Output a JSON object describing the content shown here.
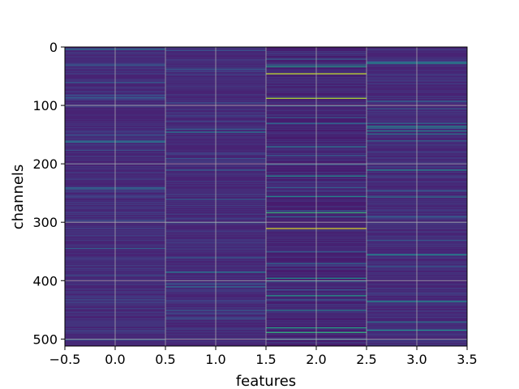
{
  "chart_data": {
    "type": "heatmap",
    "title": "",
    "xlabel": "features",
    "ylabel": "channels",
    "xlim": [
      -0.5,
      3.5
    ],
    "ylim": [
      512,
      0
    ],
    "y_inverted": true,
    "grid": true,
    "colormap": "viridis",
    "x_ticks": [
      -0.5,
      0.0,
      0.5,
      1.0,
      1.5,
      2.0,
      2.5,
      3.0,
      3.5
    ],
    "x_tick_labels": [
      "−0.5",
      "0.0",
      "0.5",
      "1.0",
      "1.5",
      "2.0",
      "2.5",
      "3.0",
      "3.5"
    ],
    "y_ticks": [
      0,
      100,
      200,
      300,
      400,
      500
    ],
    "y_tick_labels": [
      "0",
      "100",
      "200",
      "300",
      "400",
      "500"
    ],
    "features": [
      0,
      1,
      2,
      3
    ],
    "n_channels": 512,
    "value_range": [
      0,
      1
    ],
    "base_levels": [
      0.1,
      0.1,
      0.08,
      0.1
    ],
    "highlights": [
      {
        "feature": 0,
        "channels": [
          3,
          30,
          60,
          82,
          86,
          150,
          160,
          162,
          176,
          240,
          242,
          296,
          344,
          390,
          432,
          500
        ],
        "values": [
          0.4,
          0.3,
          0.3,
          0.25,
          0.3,
          0.25,
          0.35,
          0.4,
          0.25,
          0.3,
          0.35,
          0.25,
          0.3,
          0.25,
          0.25,
          0.3
        ]
      },
      {
        "feature": 1,
        "channels": [
          5,
          37,
          95,
          140,
          145,
          190,
          210,
          260,
          300,
          360,
          385,
          405,
          410,
          450,
          465
        ],
        "values": [
          0.25,
          0.3,
          0.25,
          0.3,
          0.4,
          0.25,
          0.3,
          0.3,
          0.25,
          0.3,
          0.4,
          0.3,
          0.35,
          0.3,
          0.25
        ]
      },
      {
        "feature": 2,
        "channels": [
          20,
          30,
          33,
          45,
          87,
          100,
          120,
          130,
          170,
          185,
          200,
          220,
          240,
          255,
          280,
          283,
          290,
          310,
          350,
          370,
          395,
          400,
          415,
          425,
          432,
          450,
          480,
          488,
          500
        ],
        "values": [
          0.3,
          0.4,
          0.55,
          0.92,
          0.88,
          0.3,
          0.3,
          0.35,
          0.4,
          0.3,
          0.3,
          0.5,
          0.3,
          0.45,
          0.3,
          0.65,
          0.35,
          0.95,
          0.3,
          0.35,
          0.5,
          0.4,
          0.3,
          0.55,
          0.3,
          0.45,
          0.6,
          0.65,
          0.3
        ]
      },
      {
        "feature": 3,
        "channels": [
          25,
          27,
          92,
          105,
          130,
          135,
          138,
          143,
          148,
          160,
          210,
          245,
          256,
          290,
          330,
          355,
          375,
          435,
          470,
          484
        ],
        "values": [
          0.35,
          0.5,
          0.35,
          0.3,
          0.35,
          0.5,
          0.4,
          0.45,
          0.4,
          0.35,
          0.5,
          0.3,
          0.4,
          0.3,
          0.3,
          0.5,
          0.3,
          0.5,
          0.4,
          0.5
        ]
      }
    ]
  }
}
